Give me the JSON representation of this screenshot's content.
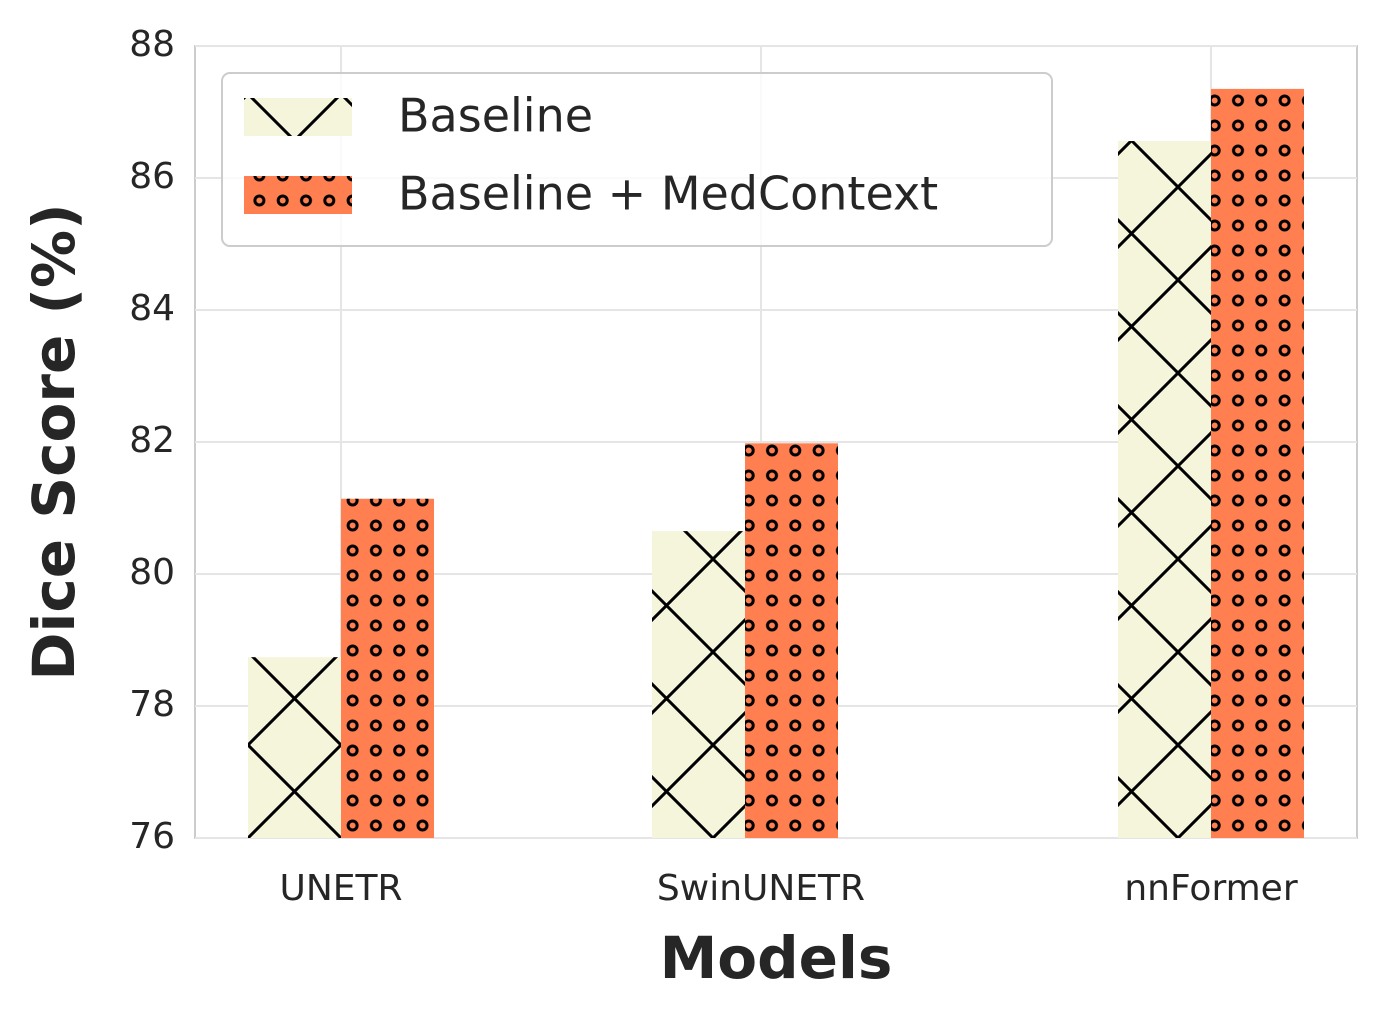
{
  "chart_data": {
    "type": "bar",
    "xlabel": "Models",
    "ylabel": "Dice Score (%)",
    "categories": [
      "UNETR",
      "SwinUNETR",
      "nnFormer"
    ],
    "series": [
      {
        "name": "Baseline",
        "color": "#f5f5dc",
        "hatch": "x",
        "values": [
          78.74,
          80.65,
          86.56
        ]
      },
      {
        "name": "Baseline + MedContext",
        "color": "#ff7f50",
        "hatch": "o",
        "values": [
          81.14,
          81.98,
          87.35
        ]
      }
    ],
    "ylim": [
      76,
      88
    ],
    "yticks": [
      76,
      78,
      80,
      82,
      84,
      86,
      88
    ],
    "grid": true,
    "legend": "upper left"
  }
}
